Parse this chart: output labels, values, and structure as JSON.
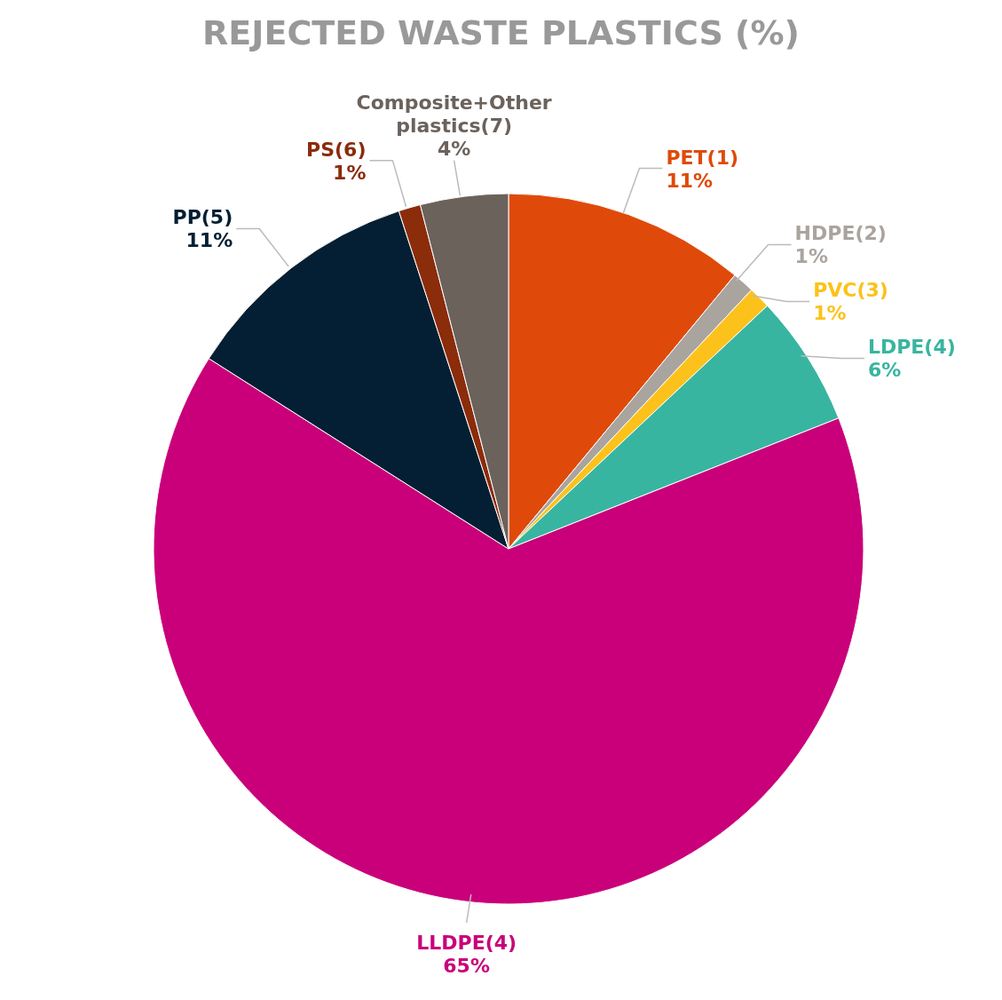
{
  "chart_data": {
    "type": "pie",
    "title": "REJECTED WASTE PLASTICS (%)",
    "categories": [
      "PET(1)",
      "HDPE(2)",
      "PVC(3)",
      "LDPE(4)",
      "LLDPE(4)",
      "PP(5)",
      "PS(6)",
      "Composite+Other plastics(7)"
    ],
    "values": [
      11,
      1,
      1,
      6,
      65,
      11,
      1,
      4
    ],
    "value_labels": [
      "11%",
      "1%",
      "1%",
      "6%",
      "65%",
      "11%",
      "1%",
      "4%"
    ],
    "colors": [
      "#df4a0a",
      "#aaa49f",
      "#fcc21b",
      "#38b5a0",
      "#c9007a",
      "#041f33",
      "#8b2c0a",
      "#6b625c"
    ],
    "legend": false
  }
}
